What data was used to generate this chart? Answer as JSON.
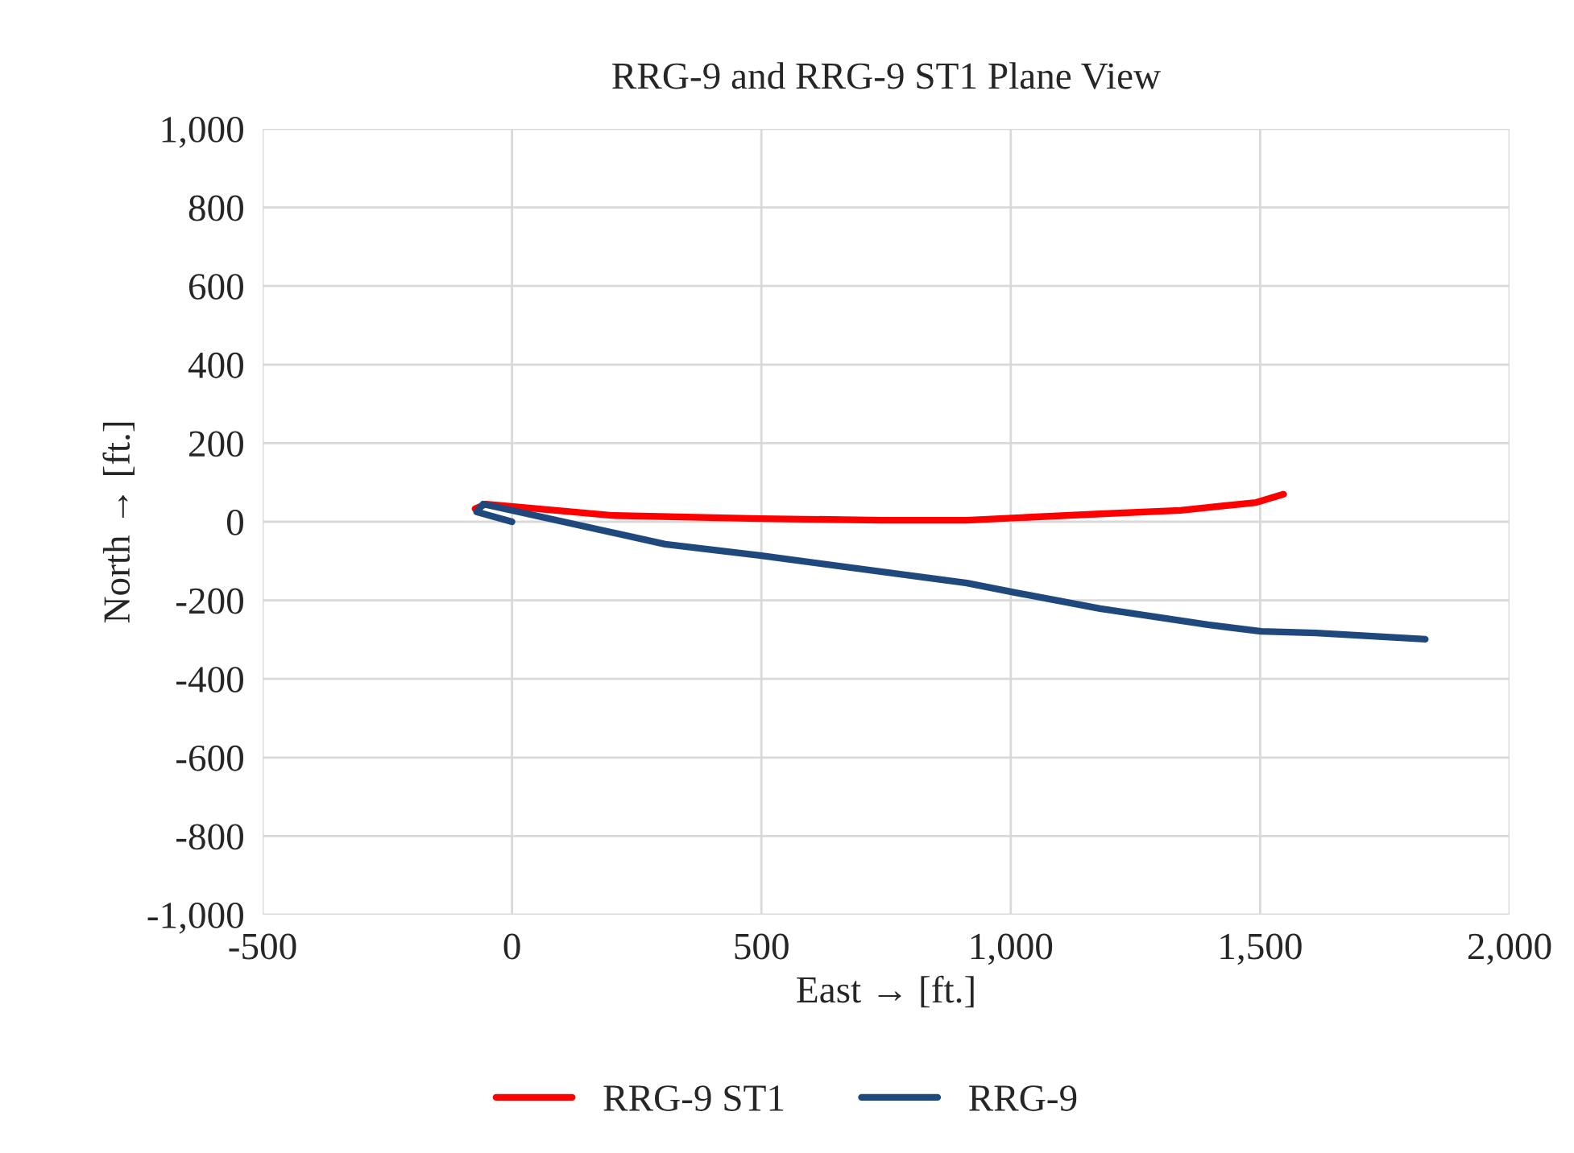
{
  "chart_data": {
    "type": "line",
    "title": "RRG-9 and RRG-9 ST1 Plane View",
    "xlabel": "East → [ft.]",
    "ylabel": "North → [ft.]",
    "xlim": [
      -500,
      2000
    ],
    "xticks": [
      {
        "value": -500,
        "label": "-500"
      },
      {
        "value": 0,
        "label": "0"
      },
      {
        "value": 500,
        "label": "500"
      },
      {
        "value": 1000,
        "label": "1,000"
      },
      {
        "value": 1500,
        "label": "1,500"
      },
      {
        "value": 2000,
        "label": "2,000"
      }
    ],
    "ylim": [
      -1000,
      1000
    ],
    "yticks": [
      {
        "value": -1000,
        "label": "-1,000"
      },
      {
        "value": -800,
        "label": "-800"
      },
      {
        "value": -600,
        "label": "-600"
      },
      {
        "value": -400,
        "label": "-400"
      },
      {
        "value": -200,
        "label": "-200"
      },
      {
        "value": 0,
        "label": "0"
      },
      {
        "value": 200,
        "label": "200"
      },
      {
        "value": 400,
        "label": "400"
      },
      {
        "value": 600,
        "label": "600"
      },
      {
        "value": 800,
        "label": "800"
      },
      {
        "value": 1000,
        "label": "1,000"
      }
    ],
    "grid": true,
    "legend": "bottom",
    "series": [
      {
        "name": "RRG-9 ST1",
        "color": "#ff0000",
        "x": [
          -74,
          -52,
          200,
          497,
          740,
          912,
          1179,
          1340,
          1492,
          1547
        ],
        "values": [
          33,
          45,
          16,
          8,
          4,
          4,
          20,
          29,
          49,
          70
        ]
      },
      {
        "name": "RRG-9",
        "color": "#1f497d",
        "x": [
          0,
          -71,
          -58,
          307,
          497,
          912,
          1008,
          1179,
          1395,
          1502,
          1612,
          1831
        ],
        "values": [
          0,
          25,
          45,
          -57,
          -86,
          -156,
          -180,
          -221,
          -262,
          -279,
          -283,
          -299
        ]
      }
    ]
  }
}
